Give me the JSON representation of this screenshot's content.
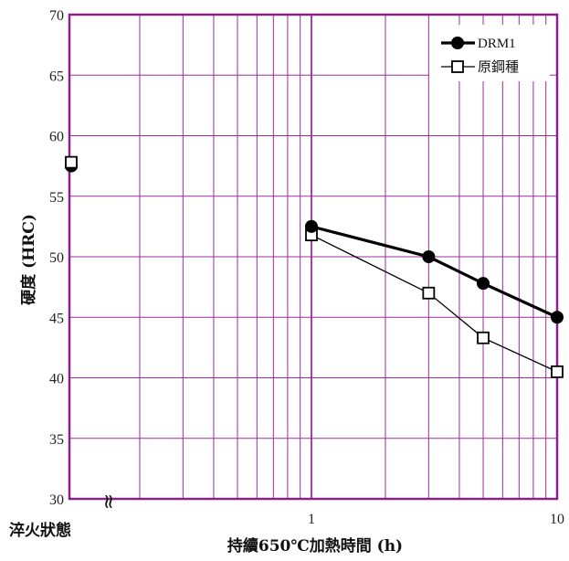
{
  "chart_data": {
    "type": "line",
    "xlabel": "持續650℃加熱時間 (h)",
    "ylabel": "硬度 (HRC)",
    "x_scale": "log",
    "xlim": [
      0.1,
      10
    ],
    "ylim": [
      30,
      70
    ],
    "y_ticks": [
      30,
      35,
      40,
      45,
      50,
      55,
      60,
      65,
      70
    ],
    "x_tick_labels": [
      {
        "value": 1,
        "label": "1"
      },
      {
        "value": 10,
        "label": "10"
      }
    ],
    "baseline_label": "淬火狀態",
    "grid": true,
    "axis_break_symbol": "≈",
    "legend_position": "top-right",
    "series": [
      {
        "name": "DRM1",
        "marker": "filled-circle",
        "color": "#000000",
        "baseline_value": 57.5,
        "x": [
          1,
          3,
          5,
          10
        ],
        "y": [
          52.5,
          50.0,
          47.8,
          45.0
        ]
      },
      {
        "name": "原鋼種",
        "marker": "open-square",
        "color": "#000000",
        "baseline_value": 57.8,
        "x": [
          1,
          3,
          5,
          10
        ],
        "y": [
          51.8,
          47.0,
          43.3,
          40.5
        ]
      }
    ],
    "colors": {
      "grid": "#9B2C9B",
      "frame": "#8B1F8B",
      "series": "#000000"
    }
  }
}
